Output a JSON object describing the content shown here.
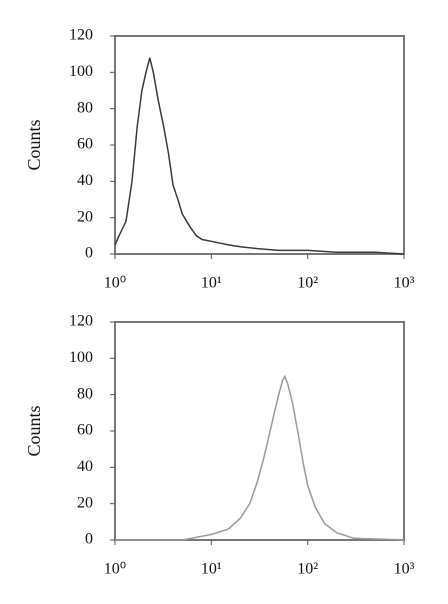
{
  "chart_data": [
    {
      "type": "line",
      "ylabel": "Counts",
      "xscale": "log",
      "xlim": [
        1,
        1000
      ],
      "ylim": [
        0,
        120
      ],
      "xticks": [
        {
          "value": 1,
          "label": "10⁰"
        },
        {
          "value": 10,
          "label": "10¹"
        },
        {
          "value": 100,
          "label": "10²"
        },
        {
          "value": 1000,
          "label": "10³"
        }
      ],
      "yticks": [
        0,
        20,
        40,
        60,
        80,
        100,
        120
      ],
      "grid": false,
      "series": [
        {
          "color": "#3a3a3a",
          "x": [
            1.0,
            1.1,
            1.3,
            1.5,
            1.7,
            1.9,
            2.1,
            2.3,
            2.5,
            2.8,
            3.2,
            3.6,
            4.0,
            4.5,
            5.0,
            6,
            7,
            8,
            10,
            15,
            20,
            30,
            50,
            100,
            200,
            500,
            1000
          ],
          "values": [
            5,
            10,
            18,
            40,
            70,
            90,
            100,
            108,
            100,
            85,
            70,
            55,
            38,
            30,
            22,
            15,
            10,
            8,
            7,
            5,
            4,
            3,
            2,
            2,
            1,
            1,
            0
          ]
        }
      ]
    },
    {
      "type": "line",
      "ylabel": "Counts",
      "xscale": "log",
      "xlim": [
        1,
        1000
      ],
      "ylim": [
        0,
        120
      ],
      "xticks": [
        {
          "value": 1,
          "label": "10⁰"
        },
        {
          "value": 10,
          "label": "10¹"
        },
        {
          "value": 100,
          "label": "10²"
        },
        {
          "value": 1000,
          "label": "10³"
        }
      ],
      "yticks": [
        0,
        20,
        40,
        60,
        80,
        100,
        120
      ],
      "grid": false,
      "series": [
        {
          "color": "#9a9a9a",
          "x": [
            1,
            5,
            10,
            15,
            20,
            25,
            30,
            35,
            40,
            45,
            50,
            55,
            58,
            62,
            70,
            80,
            90,
            100,
            120,
            150,
            200,
            300,
            1000
          ],
          "values": [
            0,
            0,
            3,
            6,
            12,
            20,
            32,
            45,
            58,
            70,
            80,
            88,
            90,
            86,
            75,
            58,
            42,
            30,
            18,
            9,
            4,
            1,
            0
          ]
        }
      ]
    }
  ]
}
